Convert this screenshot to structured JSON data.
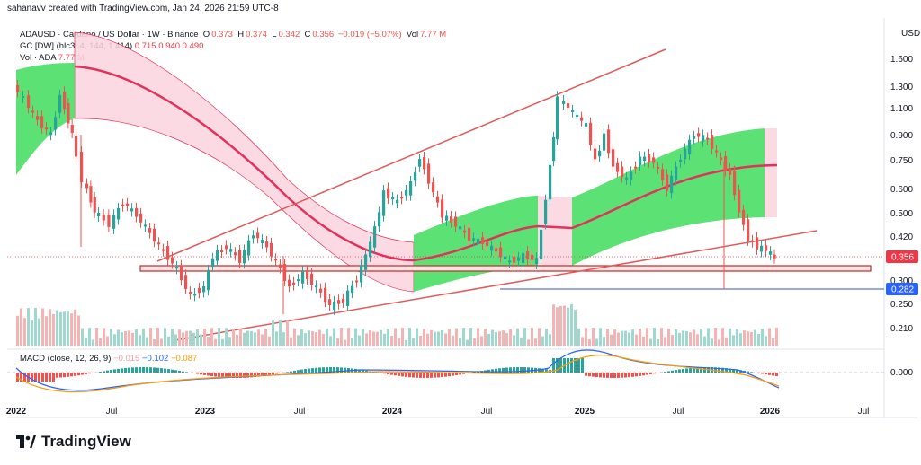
{
  "header": {
    "attribution": "sahanavv created with TradingView.com, Jan 24, 2026 21:59 UTC-8"
  },
  "legend": {
    "symbol": "ADAUSD · Cardano / US Dollar · 1W · Binance",
    "ohlc": [
      {
        "k": "O",
        "v": "0.373"
      },
      {
        "k": "H",
        "v": "0.374"
      },
      {
        "k": "L",
        "v": "0.342"
      },
      {
        "k": "C",
        "v": "0.356"
      }
    ],
    "change": "−0.019 (−5.07%)",
    "vol_label": "Vol",
    "vol_value": "7.77 M",
    "gc_label": "GC [DW] (hlc3, 4, 144, 1.414)",
    "gc_values": [
      "0.715",
      "0.940",
      "0.490"
    ],
    "vol2_label": "Vol · ADA",
    "vol2_value": "7.77 M",
    "macd_label": "MACD (close, 12, 26, 9)",
    "macd_values": [
      "−0.015",
      "−0.102",
      "−0.087"
    ]
  },
  "brand": "TradingView",
  "chart_data": {
    "type": "candlestick",
    "currency_label": "USD",
    "y_ticks": [
      "1.600",
      "1.300",
      "1.100",
      "0.900",
      "0.750",
      "0.600",
      "0.500",
      "0.420",
      "0.300",
      "0.250",
      "0.210"
    ],
    "macd_ticks": [
      "0.000"
    ],
    "x_ticks": [
      "2022",
      "Jul",
      "2023",
      "Jul",
      "2024",
      "Jul",
      "2025",
      "Jul",
      "2026",
      "Jul"
    ],
    "price_badges": [
      {
        "label": "0.356",
        "color": "#f23645"
      },
      {
        "label": "0.282",
        "color": "#2962ff"
      }
    ],
    "colors": {
      "up": "#26a69a",
      "down": "#ef5350",
      "trendline": "#e05a5a",
      "band_green": "#4ade66",
      "band_pink": "#f9c5d5",
      "midline": "#e0325a"
    },
    "support_zone": [
      0.33,
      0.34
    ],
    "horizontal_line": 0.282,
    "weekly_closes_approx": [
      {
        "date": "2022-01",
        "close": 1.15
      },
      {
        "date": "2022-04",
        "close": 0.95
      },
      {
        "date": "2022-06",
        "close": 0.5
      },
      {
        "date": "2022-09",
        "close": 0.44
      },
      {
        "date": "2022-12",
        "close": 0.25
      },
      {
        "date": "2023-02",
        "close": 0.39
      },
      {
        "date": "2023-06",
        "close": 0.26
      },
      {
        "date": "2023-10",
        "close": 0.25
      },
      {
        "date": "2024-01",
        "close": 0.6
      },
      {
        "date": "2024-03",
        "close": 0.65
      },
      {
        "date": "2024-07",
        "close": 0.38
      },
      {
        "date": "2024-10",
        "close": 0.34
      },
      {
        "date": "2024-12",
        "close": 1.1
      },
      {
        "date": "2025-03",
        "close": 0.72
      },
      {
        "date": "2025-07",
        "close": 0.8
      },
      {
        "date": "2025-09",
        "close": 0.85
      },
      {
        "date": "2025-11",
        "close": 0.42
      },
      {
        "date": "2026-01",
        "close": 0.356
      }
    ]
  }
}
